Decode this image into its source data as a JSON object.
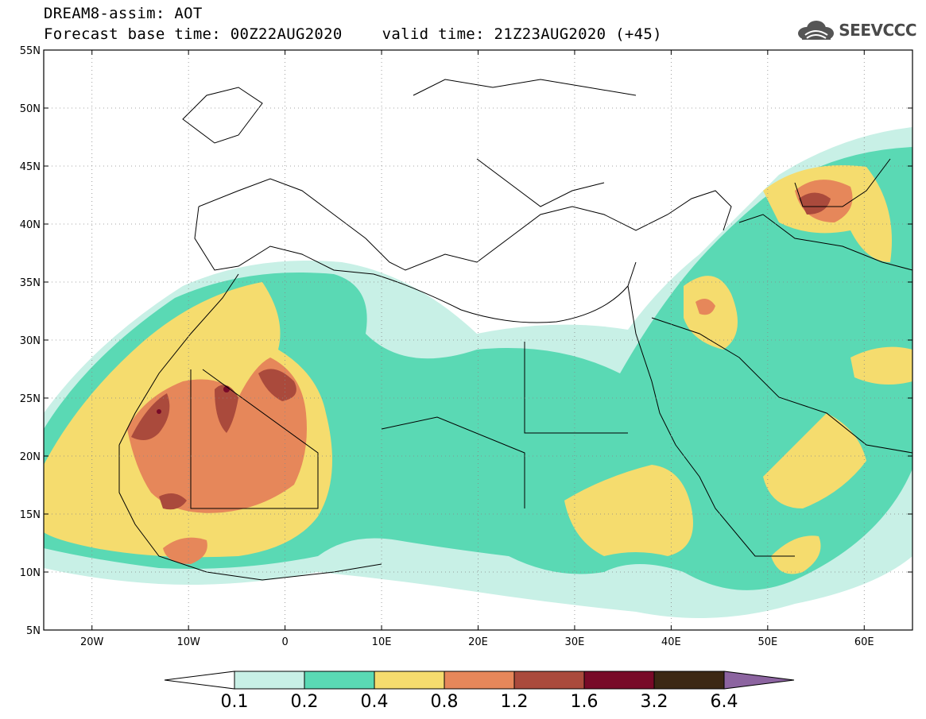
{
  "header": {
    "title": "DREAM8-assim: AOT",
    "base_time": "Forecast base time: 00Z22AUG2020",
    "valid_time": "valid time: 21Z23AUG2020 (+45)",
    "logo_text": "SEEVCCC",
    "logo_icon": "cloud-icon"
  },
  "map": {
    "lon_range": [
      -25,
      65
    ],
    "lat_range": [
      5,
      55
    ],
    "lon_ticks": [
      {
        "value": -20,
        "label": "20W"
      },
      {
        "value": -10,
        "label": "10W"
      },
      {
        "value": 0,
        "label": "0"
      },
      {
        "value": 10,
        "label": "10E"
      },
      {
        "value": 20,
        "label": "20E"
      },
      {
        "value": 30,
        "label": "30E"
      },
      {
        "value": 40,
        "label": "40E"
      },
      {
        "value": 50,
        "label": "50E"
      },
      {
        "value": 60,
        "label": "60E"
      }
    ],
    "lat_ticks": [
      {
        "value": 55,
        "label": "55N"
      },
      {
        "value": 50,
        "label": "50N"
      },
      {
        "value": 45,
        "label": "45N"
      },
      {
        "value": 40,
        "label": "40N"
      },
      {
        "value": 35,
        "label": "35N"
      },
      {
        "value": 30,
        "label": "30N"
      },
      {
        "value": 25,
        "label": "25N"
      },
      {
        "value": 20,
        "label": "20N"
      },
      {
        "value": 15,
        "label": "15N"
      },
      {
        "value": 10,
        "label": "10N"
      },
      {
        "value": 5,
        "label": "5N"
      }
    ],
    "grid": "dotted"
  },
  "colorbar": {
    "labels": [
      "0.1",
      "0.2",
      "0.4",
      "0.8",
      "1.2",
      "1.6",
      "3.2",
      "6.4"
    ],
    "colors": [
      "#ffffff",
      "#c8f0e6",
      "#5ad9b4",
      "#f5dc6e",
      "#e6875a",
      "#aa4a3c",
      "#780a28",
      "#3c2814",
      "#8c64a0"
    ]
  }
}
